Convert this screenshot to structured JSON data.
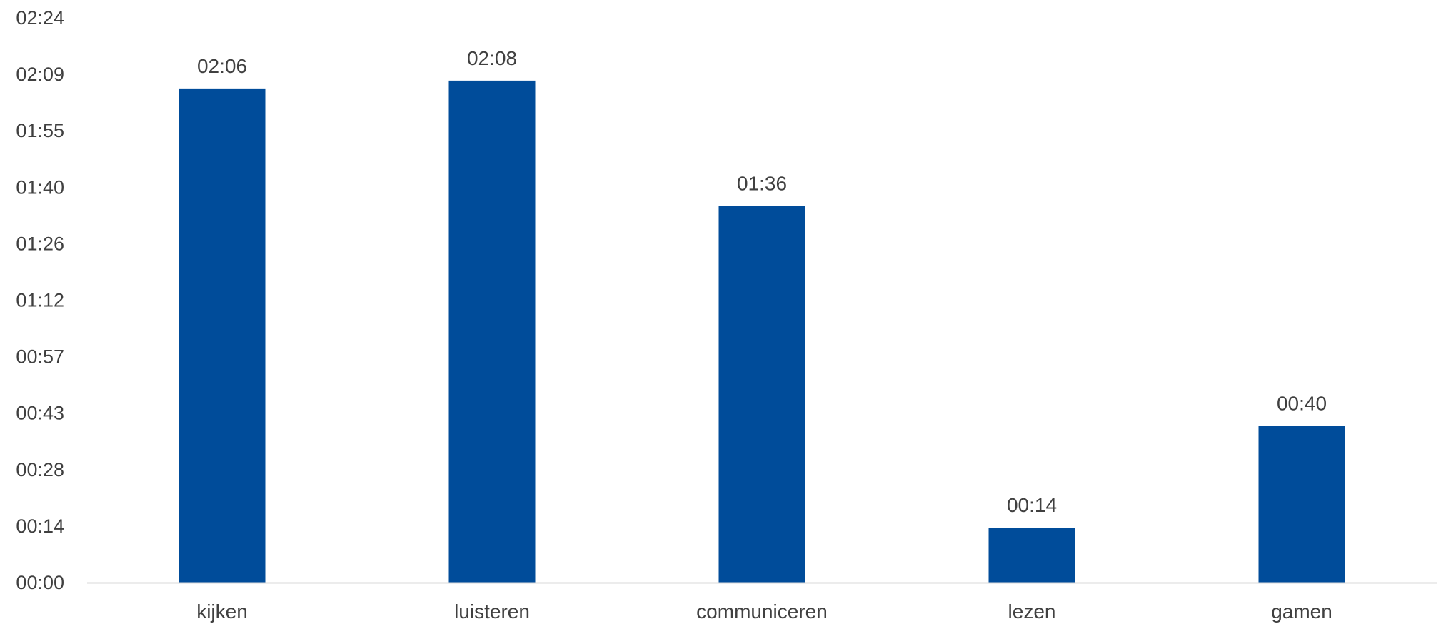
{
  "chart_data": {
    "type": "bar",
    "title": "",
    "xlabel": "",
    "ylabel": "",
    "categories": [
      "kijken",
      "luisteren",
      "communiceren",
      "lezen",
      "gamen"
    ],
    "values_minutes": [
      126,
      128,
      96,
      14,
      40
    ],
    "data_labels": [
      "02:06",
      "02:08",
      "01:36",
      "00:14",
      "00:40"
    ],
    "ylim_minutes": [
      0,
      144
    ],
    "y_ticks": [
      "00:00",
      "00:14",
      "00:28",
      "00:43",
      "00:57",
      "01:12",
      "01:26",
      "01:40",
      "01:55",
      "02:09",
      "02:24"
    ],
    "bar_color": "#004C9A",
    "axis_color": "#D9D9D9",
    "text_color": "#404040",
    "grid": false,
    "legend": "none"
  }
}
